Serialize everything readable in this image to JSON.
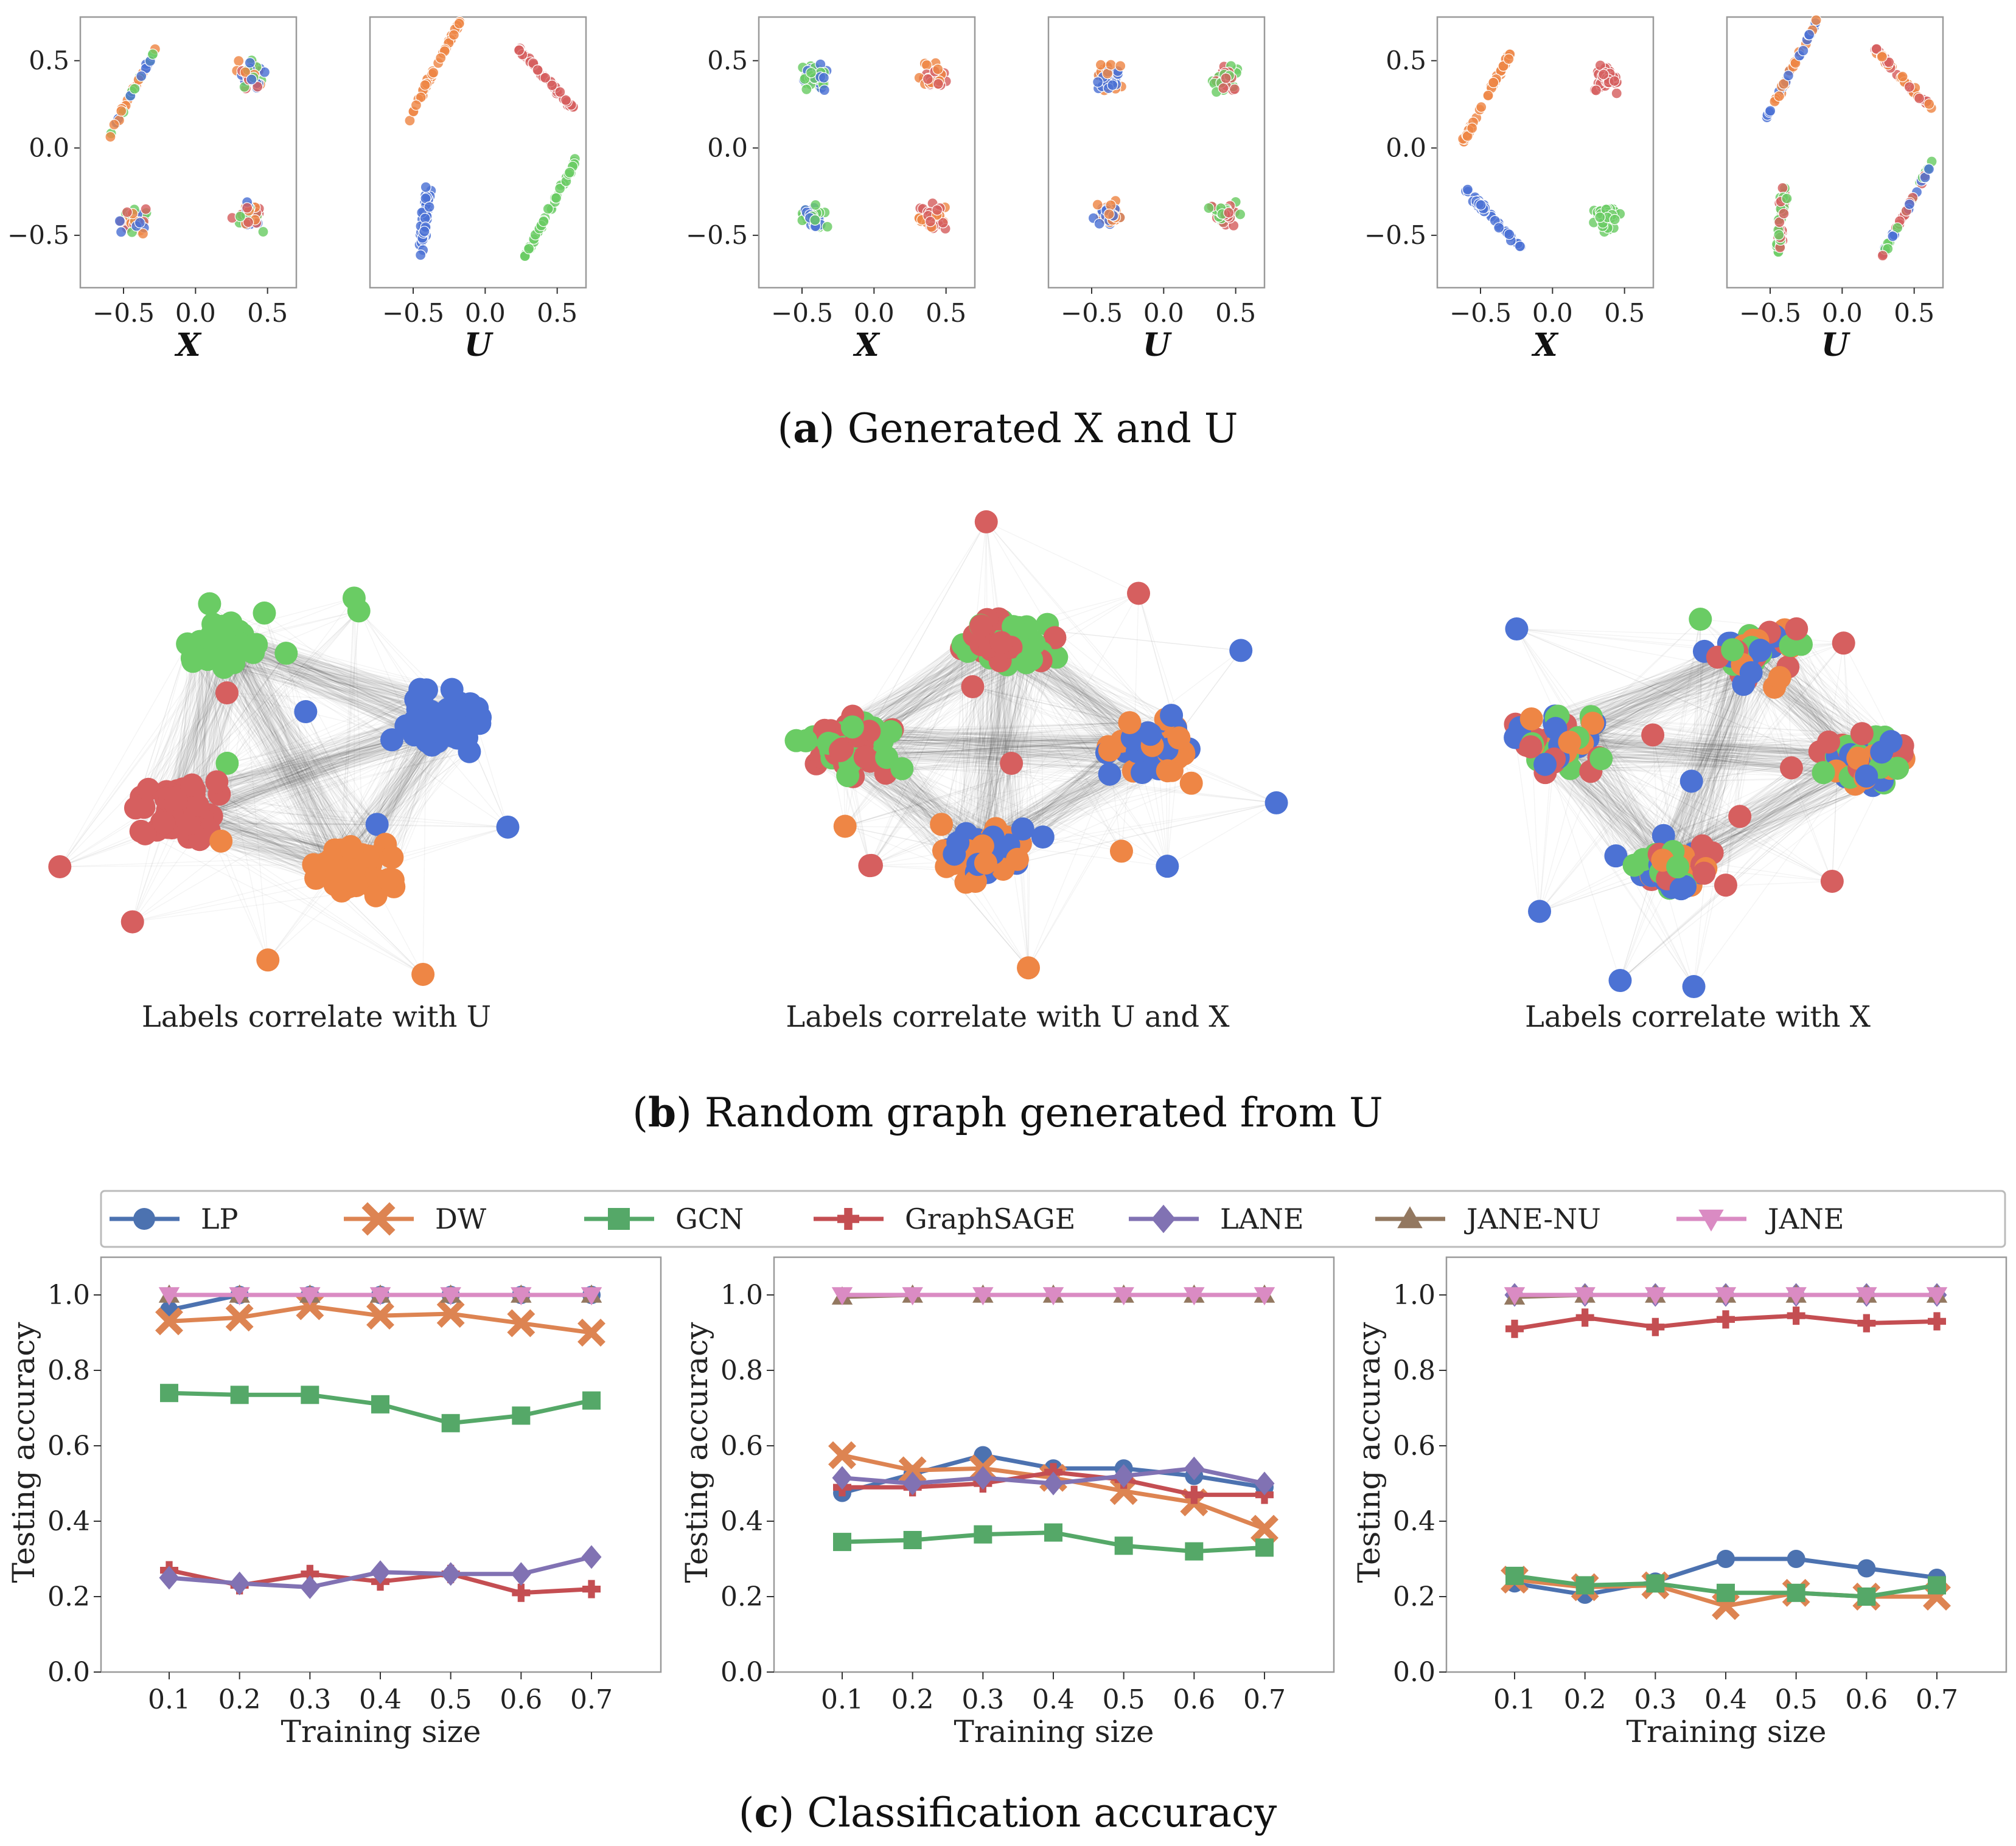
{
  "colors": {
    "blue": "#4C72D4",
    "orange": "#EE8645",
    "green": "#6ACC64",
    "red": "#D65F5F"
  },
  "panel_a": {
    "prefix": "(",
    "letter": "a",
    "title": ") Generated X and U",
    "xlabels": {
      "X": "X",
      "U": "U"
    }
  },
  "panel_b": {
    "prefix": "(",
    "letter": "b",
    "title": ") Random graph generated from U",
    "captions": [
      "Labels correlate with U",
      "Labels correlate with U and X",
      "Labels correlate with X"
    ]
  },
  "panel_c": {
    "prefix": "(",
    "letter": "c",
    "title": ") Classification accuracy"
  },
  "chart_data": [
    {
      "type": "scatter",
      "title": "Generated X and U",
      "xticks": [
        -0.5,
        0.0,
        0.5
      ],
      "yticks": [
        -0.5,
        0.0,
        0.5
      ],
      "xlim": [
        -0.8,
        0.7
      ],
      "ylim": [
        -0.8,
        0.75
      ],
      "panels": [
        {
          "axis": "X",
          "clusters": [
            [
              "line",
              -0.45,
              0.3,
              "bgo"
            ],
            [
              "blob",
              0.38,
              0.42,
              "brgo"
            ],
            [
              "blob",
              -0.42,
              -0.42,
              "bgor"
            ],
            [
              "blob",
              0.38,
              -0.38,
              "rgob"
            ]
          ]
        },
        {
          "axis": "U",
          "clusters": [
            [
              "line",
              -0.35,
              0.45,
              "o"
            ],
            [
              "lineneg",
              0.42,
              0.4,
              "r"
            ],
            [
              "vline",
              -0.42,
              -0.42,
              "b"
            ],
            [
              "line",
              0.45,
              -0.35,
              "g"
            ]
          ]
        },
        {
          "axis": "X",
          "clusters": [
            [
              "blob",
              -0.42,
              0.4,
              "gb"
            ],
            [
              "blob",
              0.4,
              0.4,
              "ro"
            ],
            [
              "blob",
              -0.42,
              -0.4,
              "gb"
            ],
            [
              "blob",
              0.4,
              -0.4,
              "ro"
            ]
          ]
        },
        {
          "axis": "U",
          "clusters": [
            [
              "blob",
              -0.38,
              0.4,
              "ob"
            ],
            [
              "blob",
              0.42,
              0.4,
              "rg"
            ],
            [
              "blob",
              -0.38,
              -0.38,
              "ob"
            ],
            [
              "blob",
              0.42,
              -0.38,
              "rg"
            ]
          ]
        },
        {
          "axis": "X",
          "clusters": [
            [
              "line",
              -0.45,
              0.3,
              "o"
            ],
            [
              "blob",
              0.38,
              0.4,
              "r"
            ],
            [
              "lineneg",
              -0.42,
              -0.4,
              "b"
            ],
            [
              "blob",
              0.38,
              -0.4,
              "g"
            ]
          ]
        },
        {
          "axis": "U",
          "clusters": [
            [
              "line",
              -0.35,
              0.45,
              "bo"
            ],
            [
              "lineneg",
              0.42,
              0.4,
              "ro"
            ],
            [
              "vline",
              -0.42,
              -0.42,
              "rg"
            ],
            [
              "line",
              0.45,
              -0.35,
              "grb"
            ]
          ]
        }
      ]
    },
    {
      "type": "network",
      "title": "Random graph generated from U",
      "graphs": [
        {
          "caption": "Labels correlate with U",
          "communities": [
            [
              "g",
              0.32,
              0.25
            ],
            [
              "b",
              0.7,
              0.42
            ],
            [
              "r",
              0.25,
              0.62
            ],
            [
              "o",
              0.55,
              0.75
            ]
          ]
        },
        {
          "caption": "Labels correlate with U and X",
          "communities": [
            [
              "rg",
              0.5,
              0.25
            ],
            [
              "rg",
              0.22,
              0.48
            ],
            [
              "bo",
              0.75,
              0.48
            ],
            [
              "ob",
              0.45,
              0.72
            ]
          ]
        },
        {
          "caption": "Labels correlate with X",
          "communities": [
            [
              "rgbo",
              0.6,
              0.27
            ],
            [
              "brgo",
              0.25,
              0.48
            ],
            [
              "rgbo",
              0.8,
              0.52
            ],
            [
              "bgro",
              0.45,
              0.75
            ]
          ]
        }
      ]
    },
    {
      "type": "line",
      "title": "Classification accuracy",
      "xlabel": "Training size",
      "ylabel": "Testing accuracy",
      "x": [
        0.1,
        0.2,
        0.3,
        0.4,
        0.5,
        0.6,
        0.7
      ],
      "xtick_labels": [
        "0.1",
        "0.2",
        "0.3",
        "0.4",
        "0.5",
        "0.6",
        "0.7"
      ],
      "ytick_labels": [
        "0.0",
        "0.2",
        "0.4",
        "0.6",
        "0.8",
        "1.0"
      ],
      "ylim": [
        0.0,
        1.1
      ],
      "legend": [
        {
          "name": "LP",
          "color": "#4C72B0",
          "marker": "circle"
        },
        {
          "name": "DW",
          "color": "#DD8452",
          "marker": "x"
        },
        {
          "name": "GCN",
          "color": "#55A868",
          "marker": "square"
        },
        {
          "name": "GraphSAGE",
          "color": "#C44E52",
          "marker": "plus"
        },
        {
          "name": "LANE",
          "color": "#8172B3",
          "marker": "diamond"
        },
        {
          "name": "JANE-NU",
          "color": "#937860",
          "marker": "triangle-up"
        },
        {
          "name": "JANE",
          "color": "#DA8BC3",
          "marker": "triangle-down"
        }
      ],
      "panels": [
        {
          "series": {
            "LP": [
              0.96,
              1.0,
              1.0,
              1.0,
              1.0,
              1.0,
              1.0
            ],
            "DW": [
              0.93,
              0.94,
              0.97,
              0.945,
              0.95,
              0.925,
              0.9
            ],
            "GCN": [
              0.74,
              0.735,
              0.735,
              0.71,
              0.66,
              0.68,
              0.72
            ],
            "GraphSAGE": [
              0.27,
              0.23,
              0.26,
              0.24,
              0.26,
              0.21,
              0.22
            ],
            "LANE": [
              0.25,
              0.235,
              0.225,
              0.265,
              0.26,
              0.26,
              0.305
            ],
            "JANE-NU": [
              1.0,
              1.0,
              1.0,
              1.0,
              1.0,
              1.0,
              1.0
            ],
            "JANE": [
              1.0,
              1.0,
              1.0,
              1.0,
              1.0,
              1.0,
              1.0
            ]
          }
        },
        {
          "series": {
            "LP": [
              0.475,
              0.525,
              0.575,
              0.54,
              0.54,
              0.52,
              0.49
            ],
            "DW": [
              0.575,
              0.535,
              0.54,
              0.515,
              0.48,
              0.45,
              0.38
            ],
            "GCN": [
              0.345,
              0.35,
              0.365,
              0.37,
              0.335,
              0.32,
              0.33
            ],
            "GraphSAGE": [
              0.49,
              0.49,
              0.5,
              0.53,
              0.51,
              0.47,
              0.47
            ],
            "LANE": [
              0.515,
              0.5,
              0.515,
              0.5,
              0.52,
              0.54,
              0.5
            ],
            "JANE-NU": [
              0.995,
              1.0,
              1.0,
              1.0,
              1.0,
              1.0,
              1.0
            ],
            "JANE": [
              1.0,
              1.0,
              1.0,
              1.0,
              1.0,
              1.0,
              1.0
            ]
          }
        },
        {
          "series": {
            "LP": [
              0.235,
              0.205,
              0.24,
              0.3,
              0.3,
              0.275,
              0.25
            ],
            "DW": [
              0.245,
              0.225,
              0.23,
              0.175,
              0.21,
              0.2,
              0.2
            ],
            "GCN": [
              0.255,
              0.23,
              0.235,
              0.21,
              0.21,
              0.2,
              0.23
            ],
            "GraphSAGE": [
              0.91,
              0.94,
              0.915,
              0.935,
              0.945,
              0.925,
              0.93
            ],
            "LANE": [
              1.0,
              1.0,
              1.0,
              1.0,
              1.0,
              1.0,
              1.0
            ],
            "JANE-NU": [
              0.995,
              1.0,
              1.0,
              1.0,
              1.0,
              1.0,
              1.0
            ],
            "JANE": [
              1.0,
              1.0,
              1.0,
              1.0,
              1.0,
              1.0,
              1.0
            ]
          }
        }
      ]
    }
  ]
}
